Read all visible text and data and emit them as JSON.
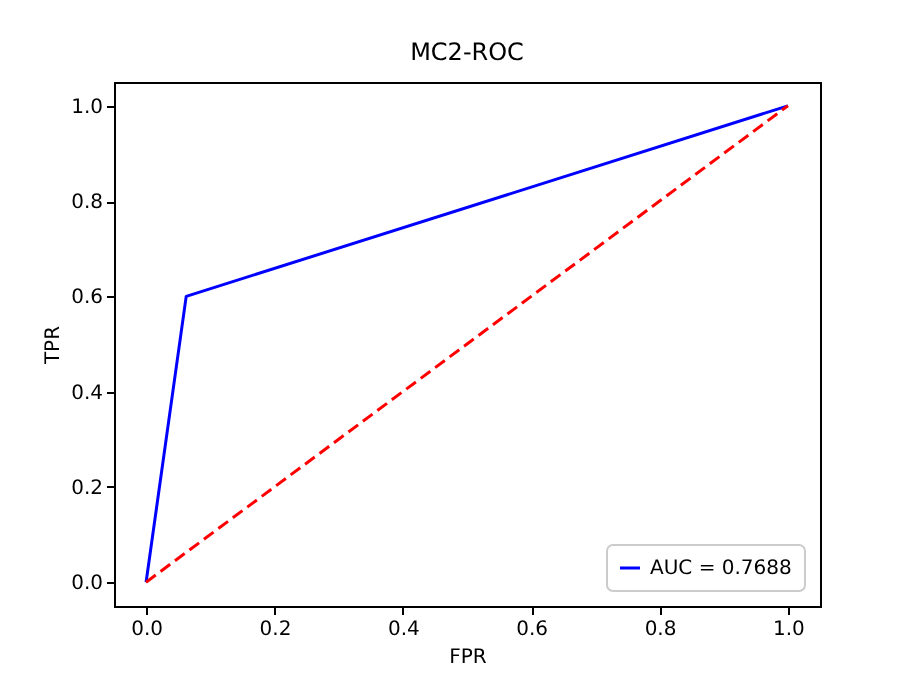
{
  "chart_data": {
    "type": "line",
    "title": "MC2-ROC",
    "xlabel": "FPR",
    "ylabel": "TPR",
    "xlim": [
      -0.05,
      1.05
    ],
    "ylim": [
      -0.05,
      1.05
    ],
    "xticks": [
      {
        "value": 0,
        "label": "0.0"
      },
      {
        "value": 0.2,
        "label": "0.2"
      },
      {
        "value": 0.4,
        "label": "0.4"
      },
      {
        "value": 0.6,
        "label": "0.6"
      },
      {
        "value": 0.8,
        "label": "0.8"
      },
      {
        "value": 1,
        "label": "1.0"
      }
    ],
    "yticks": [
      {
        "value": 0,
        "label": "0.0"
      },
      {
        "value": 0.2,
        "label": "0.2"
      },
      {
        "value": 0.4,
        "label": "0.4"
      },
      {
        "value": 0.6,
        "label": "0.6"
      },
      {
        "value": 0.8,
        "label": "0.8"
      },
      {
        "value": 1,
        "label": "1.0"
      }
    ],
    "series": [
      {
        "name": "AUC = 0.7688",
        "color": "#0000ff",
        "x": [
          0,
          0.0625,
          1
        ],
        "values": [
          0,
          0.6,
          1
        ],
        "line_style": "solid"
      },
      {
        "color": "#ff0000",
        "x": [
          0,
          1
        ],
        "values": [
          0,
          1
        ],
        "line_style": "dashed"
      }
    ],
    "legend": "bottom right",
    "grid": false,
    "marker": "none"
  }
}
